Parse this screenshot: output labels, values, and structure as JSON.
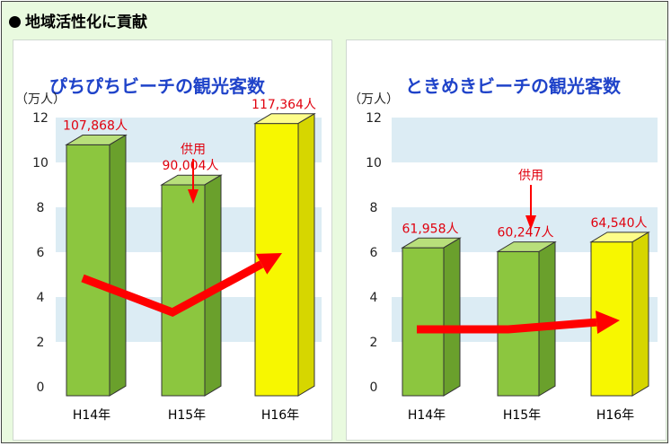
{
  "header": {
    "title": "地域活性化に貢献"
  },
  "colors": {
    "background": "#e9fadf",
    "band": "#dcecf4",
    "green_front": "#8cc63f",
    "green_top": "#b8df7b",
    "green_side": "#6aa02c",
    "yellow_front": "#f7f700",
    "yellow_top": "#fdfd8a",
    "yellow_side": "#d6d600",
    "arrow": "#ff0000",
    "title": "#1f43c9",
    "label": "#e0000e"
  },
  "chart_data": [
    {
      "type": "bar",
      "title": "ぴちぴちビーチの観光客数",
      "ylabel": "（万人）",
      "ylim": [
        0,
        12
      ],
      "yticks": [
        "0",
        "2",
        "4",
        "6",
        "8",
        "10",
        "12"
      ],
      "categories": [
        "H14年",
        "H15年",
        "H16年"
      ],
      "values": [
        10.7868,
        9.0004,
        11.7364
      ],
      "value_labels": [
        "107,868人",
        "90,004人",
        "117,364人"
      ],
      "highlight": [
        false,
        false,
        true
      ],
      "annotation": {
        "text": "供用",
        "between": [
          1,
          2
        ]
      },
      "trend_arrow": true
    },
    {
      "type": "bar",
      "title": "ときめきビーチの観光客数",
      "ylabel": "（万人）",
      "ylim": [
        0,
        12
      ],
      "yticks": [
        "0",
        "2",
        "4",
        "6",
        "8",
        "10",
        "12"
      ],
      "categories": [
        "H14年",
        "H15年",
        "H16年"
      ],
      "values": [
        6.1958,
        6.0247,
        6.454
      ],
      "value_labels": [
        "61,958人",
        "60,247人",
        "64,540人"
      ],
      "highlight": [
        false,
        false,
        true
      ],
      "annotation": {
        "text": "供用",
        "between": [
          1,
          2
        ]
      },
      "trend_arrow": true
    }
  ]
}
